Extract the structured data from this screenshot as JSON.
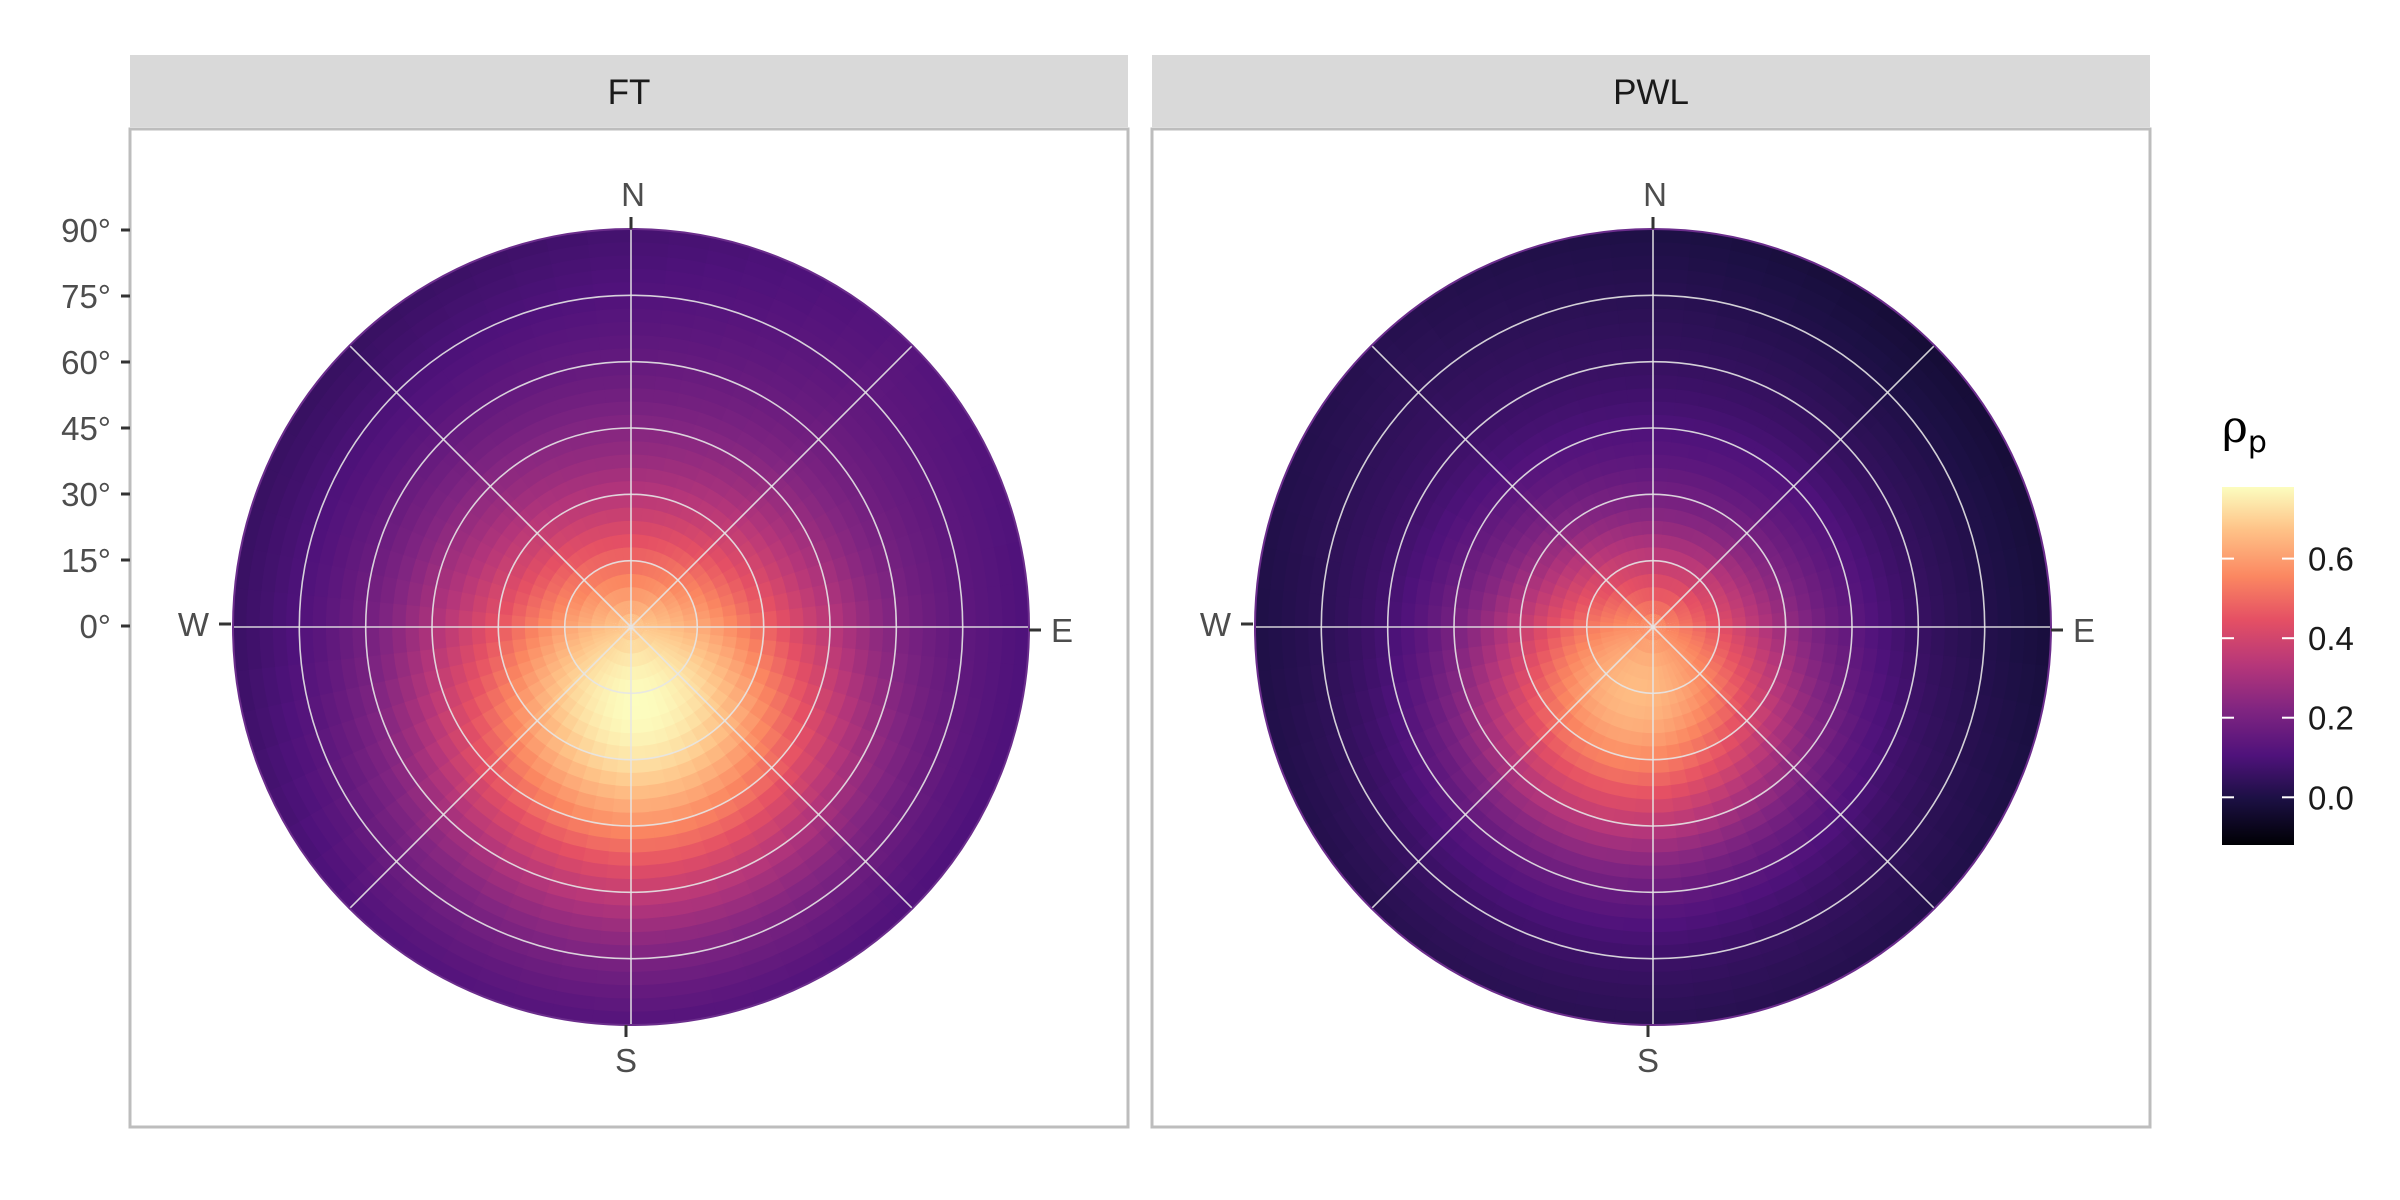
{
  "chart_data": {
    "type": "heatmap",
    "subtype": "polar-hemisphere",
    "panels": [
      {
        "name": "FT",
        "peak": {
          "azimuth_deg": 175,
          "elevation_deg": 72,
          "value": 0.78
        },
        "spread_deg": 30,
        "baseline": 0.16,
        "rim_values": {
          "N": 0.12,
          "E": 0.12,
          "S": 0.1,
          "W": 0.08,
          "NW": 0.0,
          "SE": 0.05
        }
      },
      {
        "name": "PWL",
        "peak": {
          "azimuth_deg": 195,
          "elevation_deg": 75,
          "value": 0.66
        },
        "spread_deg": 25,
        "baseline": 0.07,
        "rim_values": {
          "N": 0.04,
          "E": 0.0,
          "S": 0.03,
          "W": 0.0,
          "NE": -0.08,
          "SE": 0.0
        }
      }
    ],
    "compass_labels": {
      "N": "N",
      "E": "E",
      "S": "S",
      "W": "W"
    },
    "elevation_ticks": [
      "90°",
      "75°",
      "60°",
      "45°",
      "30°",
      "15°",
      "0°"
    ],
    "elevation_values": [
      90,
      75,
      60,
      45,
      30,
      15,
      0
    ],
    "azimuth_gridlines_deg": [
      0,
      45,
      90,
      135,
      180,
      225,
      270,
      315
    ],
    "grid": true,
    "legend": {
      "title": "ρ",
      "title_subscript": "p",
      "range": [
        -0.12,
        0.78
      ],
      "breaks": [
        0.0,
        0.2,
        0.4,
        0.6
      ],
      "break_labels": [
        "0.0",
        "0.2",
        "0.4",
        "0.6"
      ],
      "position": "right",
      "colormap": "magma"
    }
  }
}
